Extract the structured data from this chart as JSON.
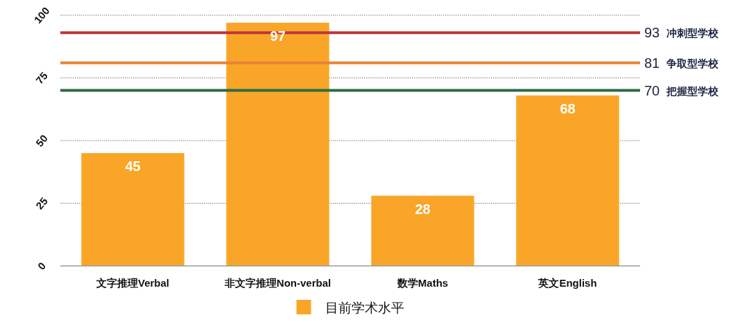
{
  "chart_data": {
    "type": "bar",
    "categories": [
      "文字推理Verbal",
      "非文字推理Non-verbal",
      "数学Maths",
      "英文English"
    ],
    "series": [
      {
        "name": "目前学术水平",
        "color": "#f9a628",
        "values": [
          45,
          97,
          28,
          68
        ]
      }
    ],
    "ylim": [
      0,
      100
    ],
    "yticks": [
      0,
      25,
      50,
      75,
      100
    ],
    "grid": "y",
    "legend": "bottom",
    "data_labels": true,
    "ref_lines": [
      {
        "axis": "y",
        "value": 93,
        "label": "93 冲刺型学校",
        "color": "#c0343c"
      },
      {
        "axis": "y",
        "value": 81,
        "label": "81 争取型学校",
        "color": "#e8833a"
      },
      {
        "axis": "y",
        "value": 70,
        "label": "70 把握型学校",
        "color": "#2e6b45"
      }
    ]
  }
}
